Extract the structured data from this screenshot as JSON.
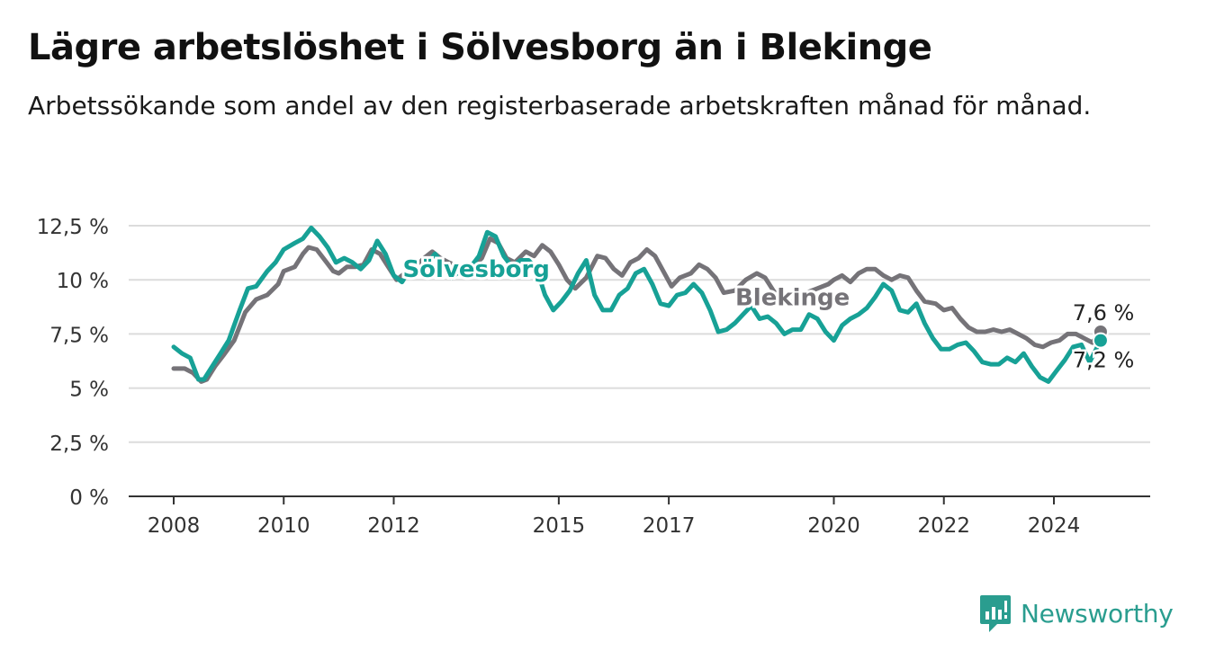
{
  "chart_data": {
    "type": "line",
    "title": "Lägre arbetslöshet i Sölvesborg än i Blekinge",
    "subtitle": "Arbetssökande som andel av den registerbaserade arbetskraften månad för månad.",
    "x_tick_labels": [
      "2008",
      "2010",
      "2012",
      "2015",
      "2017",
      "2020",
      "2022",
      "2024"
    ],
    "y_tick_labels": [
      "0 %",
      "2,5 %",
      "5 %",
      "7,5 %",
      "10 %",
      "12,5 %"
    ],
    "ylim": [
      0,
      12.5
    ],
    "xlim": [
      2008,
      2024.9
    ],
    "grid": true,
    "series": [
      {
        "name": "Blekinge",
        "color": "#757378",
        "end_label": "7,6 %",
        "points": [
          [
            2008.0,
            5.9
          ],
          [
            2008.2,
            5.9
          ],
          [
            2008.35,
            5.7
          ],
          [
            2008.5,
            5.3
          ],
          [
            2008.6,
            5.4
          ],
          [
            2008.75,
            6.0
          ],
          [
            2008.9,
            6.5
          ],
          [
            2009.1,
            7.2
          ],
          [
            2009.3,
            8.5
          ],
          [
            2009.5,
            9.1
          ],
          [
            2009.7,
            9.3
          ],
          [
            2009.9,
            9.8
          ],
          [
            2010.0,
            10.4
          ],
          [
            2010.2,
            10.6
          ],
          [
            2010.35,
            11.2
          ],
          [
            2010.45,
            11.5
          ],
          [
            2010.6,
            11.4
          ],
          [
            2010.75,
            10.9
          ],
          [
            2010.9,
            10.4
          ],
          [
            2011.0,
            10.3
          ],
          [
            2011.15,
            10.6
          ],
          [
            2011.3,
            10.6
          ],
          [
            2011.45,
            10.7
          ],
          [
            2011.6,
            11.4
          ],
          [
            2011.75,
            11.2
          ],
          [
            2011.9,
            10.6
          ],
          [
            2012.05,
            10.0
          ],
          [
            2012.2,
            10.3
          ],
          [
            2012.4,
            10.6
          ],
          [
            2012.55,
            11.0
          ],
          [
            2012.7,
            11.3
          ],
          [
            2012.85,
            11.0
          ],
          [
            2013.0,
            10.8
          ],
          [
            2013.2,
            10.6
          ],
          [
            2013.4,
            10.5
          ],
          [
            2013.6,
            11.0
          ],
          [
            2013.75,
            11.9
          ],
          [
            2013.9,
            11.7
          ],
          [
            2014.05,
            11.0
          ],
          [
            2014.2,
            10.8
          ],
          [
            2014.4,
            11.3
          ],
          [
            2014.55,
            11.1
          ],
          [
            2014.7,
            11.6
          ],
          [
            2014.85,
            11.3
          ],
          [
            2015.0,
            10.7
          ],
          [
            2015.15,
            10.0
          ],
          [
            2015.3,
            9.6
          ],
          [
            2015.5,
            10.1
          ],
          [
            2015.7,
            11.1
          ],
          [
            2015.85,
            11.0
          ],
          [
            2016.0,
            10.5
          ],
          [
            2016.15,
            10.2
          ],
          [
            2016.3,
            10.8
          ],
          [
            2016.45,
            11.0
          ],
          [
            2016.6,
            11.4
          ],
          [
            2016.75,
            11.1
          ],
          [
            2016.9,
            10.4
          ],
          [
            2017.05,
            9.7
          ],
          [
            2017.2,
            10.1
          ],
          [
            2017.4,
            10.3
          ],
          [
            2017.55,
            10.7
          ],
          [
            2017.7,
            10.5
          ],
          [
            2017.85,
            10.1
          ],
          [
            2018.0,
            9.4
          ],
          [
            2018.2,
            9.5
          ],
          [
            2018.4,
            10.0
          ],
          [
            2018.6,
            10.3
          ],
          [
            2018.75,
            10.1
          ],
          [
            2018.9,
            9.5
          ],
          [
            2019.1,
            8.9
          ],
          [
            2019.3,
            9.0
          ],
          [
            2019.5,
            9.4
          ],
          [
            2019.7,
            9.6
          ],
          [
            2019.9,
            9.8
          ],
          [
            2020.0,
            10.0
          ],
          [
            2020.15,
            10.2
          ],
          [
            2020.3,
            9.9
          ],
          [
            2020.45,
            10.3
          ],
          [
            2020.6,
            10.5
          ],
          [
            2020.75,
            10.5
          ],
          [
            2020.9,
            10.2
          ],
          [
            2021.05,
            10.0
          ],
          [
            2021.2,
            10.2
          ],
          [
            2021.35,
            10.1
          ],
          [
            2021.5,
            9.5
          ],
          [
            2021.65,
            9.0
          ],
          [
            2021.85,
            8.9
          ],
          [
            2022.0,
            8.6
          ],
          [
            2022.15,
            8.7
          ],
          [
            2022.3,
            8.2
          ],
          [
            2022.45,
            7.8
          ],
          [
            2022.6,
            7.6
          ],
          [
            2022.75,
            7.6
          ],
          [
            2022.9,
            7.7
          ],
          [
            2023.05,
            7.6
          ],
          [
            2023.2,
            7.7
          ],
          [
            2023.35,
            7.5
          ],
          [
            2023.5,
            7.3
          ],
          [
            2023.65,
            7.0
          ],
          [
            2023.8,
            6.9
          ],
          [
            2023.95,
            7.1
          ],
          [
            2024.1,
            7.2
          ],
          [
            2024.25,
            7.5
          ],
          [
            2024.4,
            7.5
          ],
          [
            2024.55,
            7.3
          ],
          [
            2024.7,
            7.1
          ],
          [
            2024.85,
            7.6
          ]
        ]
      },
      {
        "name": "Sölvesborg",
        "color": "#17a196",
        "end_label": "7,2 %",
        "points": [
          [
            2008.0,
            6.9
          ],
          [
            2008.15,
            6.6
          ],
          [
            2008.3,
            6.4
          ],
          [
            2008.45,
            5.4
          ],
          [
            2008.55,
            5.4
          ],
          [
            2008.7,
            6.0
          ],
          [
            2008.85,
            6.6
          ],
          [
            2009.0,
            7.2
          ],
          [
            2009.2,
            8.6
          ],
          [
            2009.35,
            9.6
          ],
          [
            2009.5,
            9.7
          ],
          [
            2009.7,
            10.4
          ],
          [
            2009.85,
            10.8
          ],
          [
            2010.0,
            11.4
          ],
          [
            2010.2,
            11.7
          ],
          [
            2010.35,
            11.9
          ],
          [
            2010.5,
            12.4
          ],
          [
            2010.65,
            12.0
          ],
          [
            2010.8,
            11.5
          ],
          [
            2010.95,
            10.8
          ],
          [
            2011.1,
            11.0
          ],
          [
            2011.25,
            10.8
          ],
          [
            2011.4,
            10.5
          ],
          [
            2011.55,
            10.9
          ],
          [
            2011.7,
            11.8
          ],
          [
            2011.85,
            11.2
          ],
          [
            2012.0,
            10.2
          ],
          [
            2012.15,
            9.9
          ],
          [
            2012.3,
            10.5
          ],
          [
            2012.45,
            10.4
          ],
          [
            2012.6,
            10.7
          ],
          [
            2012.75,
            11.2
          ],
          [
            2012.9,
            10.7
          ],
          [
            2013.05,
            10.1
          ],
          [
            2013.2,
            10.4
          ],
          [
            2013.4,
            10.6
          ],
          [
            2013.55,
            11.1
          ],
          [
            2013.7,
            12.2
          ],
          [
            2013.85,
            12.0
          ],
          [
            2014.0,
            11.1
          ],
          [
            2014.15,
            10.6
          ],
          [
            2014.3,
            10.9
          ],
          [
            2014.45,
            10.9
          ],
          [
            2014.6,
            10.5
          ],
          [
            2014.75,
            9.3
          ],
          [
            2014.9,
            8.6
          ],
          [
            2015.05,
            9.0
          ],
          [
            2015.2,
            9.5
          ],
          [
            2015.35,
            10.3
          ],
          [
            2015.5,
            10.9
          ],
          [
            2015.65,
            9.3
          ],
          [
            2015.8,
            8.6
          ],
          [
            2015.95,
            8.6
          ],
          [
            2016.1,
            9.3
          ],
          [
            2016.25,
            9.6
          ],
          [
            2016.4,
            10.3
          ],
          [
            2016.55,
            10.5
          ],
          [
            2016.7,
            9.8
          ],
          [
            2016.85,
            8.9
          ],
          [
            2017.0,
            8.8
          ],
          [
            2017.15,
            9.3
          ],
          [
            2017.3,
            9.4
          ],
          [
            2017.45,
            9.8
          ],
          [
            2017.6,
            9.4
          ],
          [
            2017.75,
            8.6
          ],
          [
            2017.9,
            7.6
          ],
          [
            2018.05,
            7.7
          ],
          [
            2018.2,
            8.0
          ],
          [
            2018.35,
            8.4
          ],
          [
            2018.5,
            8.8
          ],
          [
            2018.65,
            8.2
          ],
          [
            2018.8,
            8.3
          ],
          [
            2018.95,
            8.0
          ],
          [
            2019.1,
            7.5
          ],
          [
            2019.25,
            7.7
          ],
          [
            2019.4,
            7.7
          ],
          [
            2019.55,
            8.4
          ],
          [
            2019.7,
            8.2
          ],
          [
            2019.85,
            7.6
          ],
          [
            2020.0,
            7.2
          ],
          [
            2020.15,
            7.9
          ],
          [
            2020.3,
            8.2
          ],
          [
            2020.45,
            8.4
          ],
          [
            2020.6,
            8.7
          ],
          [
            2020.75,
            9.2
          ],
          [
            2020.9,
            9.8
          ],
          [
            2021.05,
            9.5
          ],
          [
            2021.2,
            8.6
          ],
          [
            2021.35,
            8.5
          ],
          [
            2021.5,
            8.9
          ],
          [
            2021.65,
            8.0
          ],
          [
            2021.8,
            7.3
          ],
          [
            2021.95,
            6.8
          ],
          [
            2022.1,
            6.8
          ],
          [
            2022.25,
            7.0
          ],
          [
            2022.4,
            7.1
          ],
          [
            2022.55,
            6.7
          ],
          [
            2022.7,
            6.2
          ],
          [
            2022.85,
            6.1
          ],
          [
            2023.0,
            6.1
          ],
          [
            2023.15,
            6.4
          ],
          [
            2023.3,
            6.2
          ],
          [
            2023.45,
            6.6
          ],
          [
            2023.6,
            6.0
          ],
          [
            2023.75,
            5.5
          ],
          [
            2023.9,
            5.3
          ],
          [
            2024.05,
            5.8
          ],
          [
            2024.2,
            6.3
          ],
          [
            2024.35,
            6.9
          ],
          [
            2024.5,
            7.0
          ],
          [
            2024.65,
            6.2
          ],
          [
            2024.85,
            7.2
          ]
        ]
      }
    ]
  },
  "brand": {
    "name": "Newsworthy",
    "icon": "newsworthy-logo-icon",
    "color": "#2a9d8f"
  }
}
